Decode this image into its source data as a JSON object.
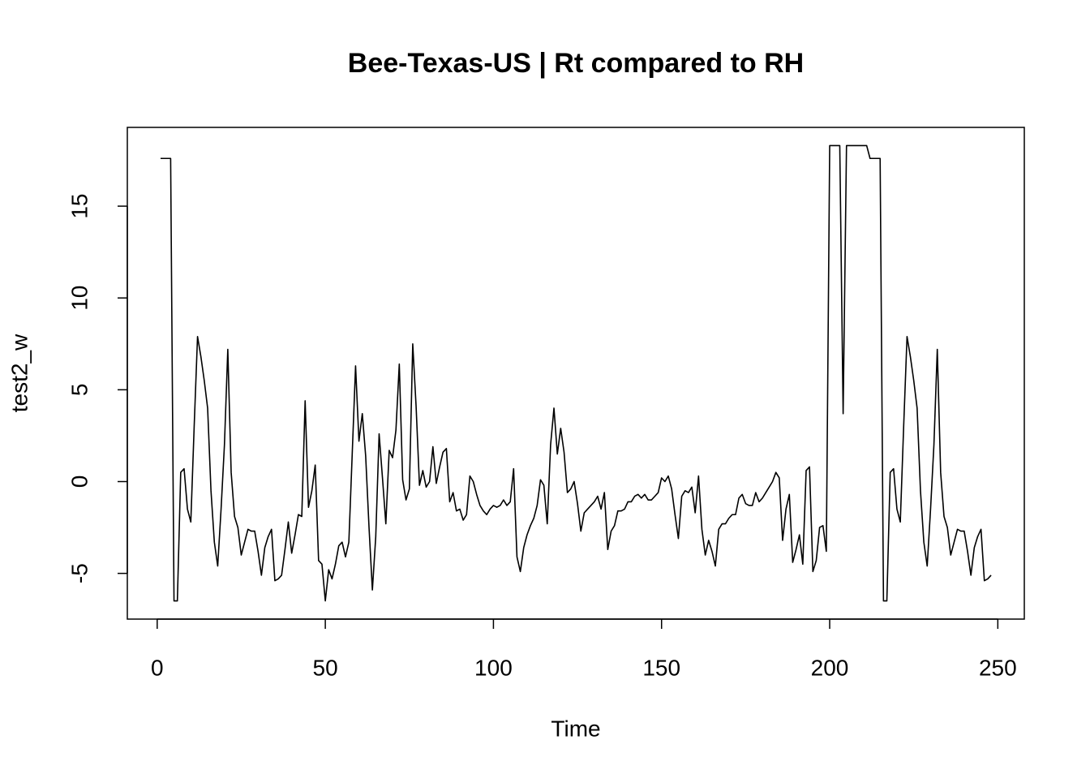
{
  "chart_data": {
    "type": "line",
    "title": "Bee-Texas-US | Rt compared to RH",
    "x_label": "Time",
    "y_label": "test2_w",
    "x": [
      1,
      2,
      3,
      4,
      5,
      6,
      7,
      8,
      9,
      10,
      11,
      12,
      13,
      14,
      15,
      16,
      17,
      18,
      19,
      20,
      21,
      22,
      23,
      24,
      25,
      26,
      27,
      28,
      29,
      30,
      31,
      32,
      33,
      34,
      35,
      36,
      37,
      38,
      39,
      40,
      41,
      42,
      43,
      44,
      45,
      46,
      47,
      48,
      49,
      50,
      51,
      52,
      53,
      54,
      55,
      56,
      57,
      58,
      59,
      60,
      61,
      62,
      63,
      64,
      65,
      66,
      67,
      68,
      69,
      70,
      71,
      72,
      73,
      74,
      75,
      76,
      77,
      78,
      79,
      80,
      81,
      82,
      83,
      84,
      85,
      86,
      87,
      88,
      89,
      90,
      91,
      92,
      93,
      94,
      95,
      96,
      97,
      98,
      99,
      100,
      101,
      102,
      103,
      104,
      105,
      106,
      107,
      108,
      109,
      110,
      111,
      112,
      113,
      114,
      115,
      116,
      117,
      118,
      119,
      120,
      121,
      122,
      123,
      124,
      125,
      126,
      127,
      128,
      129,
      130,
      131,
      132,
      133,
      134,
      135,
      136,
      137,
      138,
      139,
      140,
      141,
      142,
      143,
      144,
      145,
      146,
      147,
      148,
      149,
      150,
      151,
      152,
      153,
      154,
      155,
      156,
      157,
      158,
      159,
      160,
      161,
      162,
      163,
      164,
      165,
      166,
      167,
      168,
      169,
      170,
      171,
      172,
      173,
      174,
      175,
      176,
      177,
      178,
      179,
      180,
      181,
      182,
      183,
      184,
      185,
      186,
      187,
      188,
      189,
      190,
      191,
      192,
      193,
      194,
      195,
      196,
      197,
      198,
      199,
      200,
      201,
      202,
      203,
      204,
      205,
      206,
      207,
      208,
      209,
      210,
      211,
      212,
      213,
      214,
      215,
      216,
      217,
      218,
      219,
      220,
      221,
      222,
      223,
      224,
      225,
      226,
      227,
      228,
      229,
      230,
      231,
      232,
      233,
      234,
      235,
      236,
      237,
      238,
      239,
      240,
      241,
      242,
      243,
      244,
      245,
      246,
      247,
      248
    ],
    "series": [
      {
        "name": "test2_w",
        "color": "#000000",
        "values": [
          17.6,
          17.6,
          17.6,
          17.6,
          -6.5,
          -6.5,
          0.5,
          0.7,
          -1.5,
          -2.2,
          3,
          7.9,
          6.8,
          5.5,
          4,
          -0.5,
          -3.3,
          -4.6,
          -1.5,
          2,
          7.2,
          0.5,
          -1.9,
          -2.5,
          -4,
          -3.3,
          -2.6,
          -2.7,
          -2.7,
          -3.8,
          -5.1,
          -3.6,
          -3,
          -2.6,
          -5.4,
          -5.3,
          -5.1,
          -3.7,
          -2.2,
          -3.9,
          -2.9,
          -1.8,
          -1.9,
          4.4,
          -1.4,
          -0.5,
          0.9,
          -4.3,
          -4.5,
          -6.5,
          -4.8,
          -5.3,
          -4.5,
          -3.5,
          -3.3,
          -4.1,
          -3.3,
          1.5,
          6.3,
          2.2,
          3.7,
          1.4,
          -2.5,
          -5.9,
          -3,
          2.6,
          0.2,
          -2.3,
          1.7,
          1.3,
          2.8,
          6.4,
          0.1,
          -1,
          -0.4,
          7.5,
          4.1,
          -0.2,
          0.6,
          -0.3,
          0,
          1.9,
          -0.1,
          0.8,
          1.6,
          1.8,
          -1.1,
          -0.6,
          -1.6,
          -1.5,
          -2.1,
          -1.8,
          0.3,
          0,
          -0.7,
          -1.3,
          -1.6,
          -1.8,
          -1.5,
          -1.3,
          -1.4,
          -1.3,
          -1.0,
          -1.3,
          -1.1,
          0.7,
          -4.1,
          -4.9,
          -3.6,
          -2.9,
          -2.4,
          -2,
          -1.3,
          0.1,
          -0.2,
          -2.3,
          2,
          4,
          1.5,
          2.9,
          1.6,
          -0.6,
          -0.4,
          0,
          -1.2,
          -2.7,
          -1.7,
          -1.5,
          -1.3,
          -1.1,
          -0.8,
          -1.5,
          -0.6,
          -3.7,
          -2.7,
          -2.4,
          -1.6,
          -1.6,
          -1.5,
          -1.1,
          -1.1,
          -0.8,
          -0.7,
          -0.9,
          -0.7,
          -1,
          -1,
          -0.8,
          -0.6,
          0.2,
          0,
          0.3,
          -0.4,
          -1.8,
          -3.1,
          -0.8,
          -0.5,
          -0.6,
          -0.3,
          -1.7,
          0.3,
          -2.6,
          -4,
          -3.2,
          -3.8,
          -4.6,
          -2.6,
          -2.3,
          -2.3,
          -2,
          -1.8,
          -1.8,
          -0.9,
          -0.7,
          -1.2,
          -1.3,
          -1.3,
          -0.6,
          -1.1,
          -0.9,
          -0.6,
          -0.3,
          0,
          0.5,
          0.2,
          -3.2,
          -1.5,
          -0.7,
          -4.4,
          -3.7,
          -2.9,
          -4.5,
          0.6,
          0.8,
          -4.9,
          -4.3,
          -2.5,
          -2.4,
          -3.8,
          18.3,
          18.3,
          18.3,
          18.3,
          3.7,
          18.3,
          18.3,
          18.3,
          18.3,
          18.3,
          18.3,
          18.3,
          17.6,
          17.6,
          17.6,
          17.6,
          -6.5,
          -6.5,
          0.5,
          0.7,
          -1.5,
          -2.2,
          3,
          7.9,
          6.8,
          5.5,
          4,
          -0.5,
          -3.3,
          -4.6,
          -1.5,
          2,
          7.2,
          0.5,
          -1.9,
          -2.5,
          -4,
          -3.3,
          -2.6,
          -2.7,
          -2.7,
          -3.8,
          -5.1,
          -3.6,
          -3,
          -2.6,
          -5.4,
          -5.3,
          -5.1
        ]
      }
    ],
    "xlim": [
      -8.88,
      257.88
    ],
    "ylim": [
      -7.49,
      19.29
    ],
    "xticks": [
      0,
      50,
      100,
      150,
      200,
      250
    ],
    "yticks": [
      -5,
      0,
      5,
      10,
      15
    ]
  }
}
